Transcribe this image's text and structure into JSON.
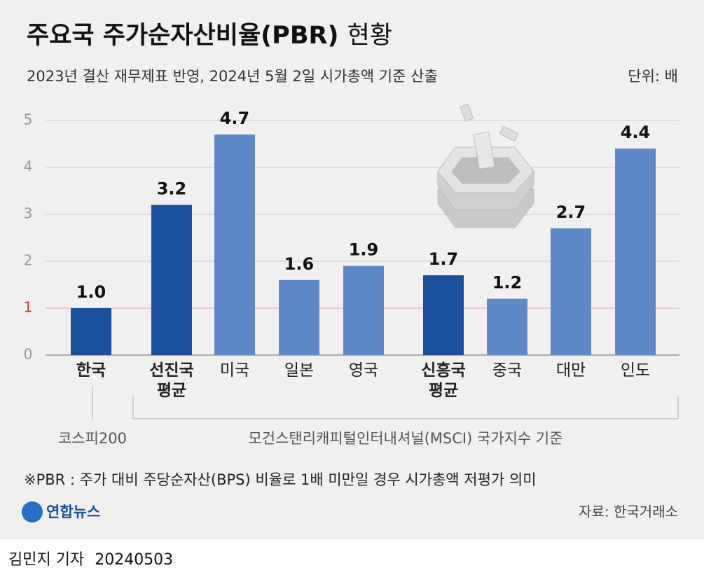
{
  "chart_data": {
    "type": "bar",
    "title": "주요국 주가순자산비율(PBR)",
    "title_suffix": "현황",
    "subtitle": "2023년 결산 재무제표 반영, 2024년 5월 2일 시가총액 기준 산출",
    "unit": "단위: 배",
    "categories": [
      "한국",
      "선진국 평균",
      "미국",
      "일본",
      "영국",
      "신흥국 평균",
      "중국",
      "대만",
      "인도"
    ],
    "values": [
      1.0,
      3.2,
      4.7,
      1.6,
      1.9,
      1.7,
      1.2,
      2.7,
      4.4
    ],
    "value_labels": [
      "1.0",
      "3.2",
      "4.7",
      "1.6",
      "1.9",
      "1.7",
      "1.2",
      "2.7",
      "4.4"
    ],
    "colors": [
      "#1a4f9c",
      "#1a4f9c",
      "#5f88c9",
      "#5f88c9",
      "#5f88c9",
      "#1a4f9c",
      "#5f88c9",
      "#5f88c9",
      "#5f88c9"
    ],
    "ylim": [
      0,
      5
    ],
    "yticks": [
      0,
      1,
      2,
      3,
      4,
      5
    ],
    "grid": true,
    "annotations": [
      "코스피200",
      "모건스탠리캐피털인터내셔널(MSCI) 국가지수 기준"
    ],
    "footnote": "※PBR : 주가 대비 주당순자산(BPS) 비율로 1배 미만일 경우 시가총액 저평가 의미",
    "source": "자료: 한국거래소",
    "logo": "연합뉴스",
    "byline": "김민지 기자",
    "date": "20240503"
  }
}
